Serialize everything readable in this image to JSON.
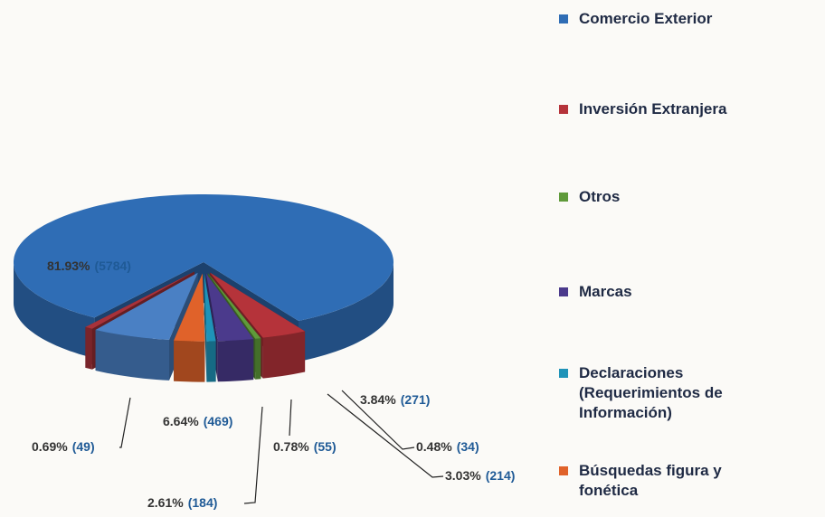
{
  "chart_data": {
    "type": "pie",
    "categories": [
      "Comercio Exterior",
      "Inversión Extranjera",
      "Otros",
      "Marcas",
      "Declaraciones (Requerimientos de Información)",
      "Búsquedas figura y fonética",
      null,
      null
    ],
    "values": [
      81.93,
      3.84,
      0.48,
      3.03,
      0.78,
      2.61,
      6.64,
      0.69
    ],
    "value_labels": [
      "81.93%",
      "3.84%",
      "0.48%",
      "3.03%",
      "0.78%",
      "2.61%",
      "6.64%",
      "0.69%"
    ],
    "counts": [
      5784,
      271,
      34,
      214,
      55,
      184,
      469,
      49
    ],
    "count_labels": [
      "(5784)",
      "(271)",
      "(34)",
      "(214)",
      "(55)",
      "(184)",
      "(469)",
      "(49)"
    ],
    "colors": [
      "#2f6db5",
      "#b5333a",
      "#5f9a3a",
      "#4b3a8c",
      "#1f93b8",
      "#e0622a",
      "#4a80c4",
      "#a8323a"
    ],
    "legend": "right"
  }
}
